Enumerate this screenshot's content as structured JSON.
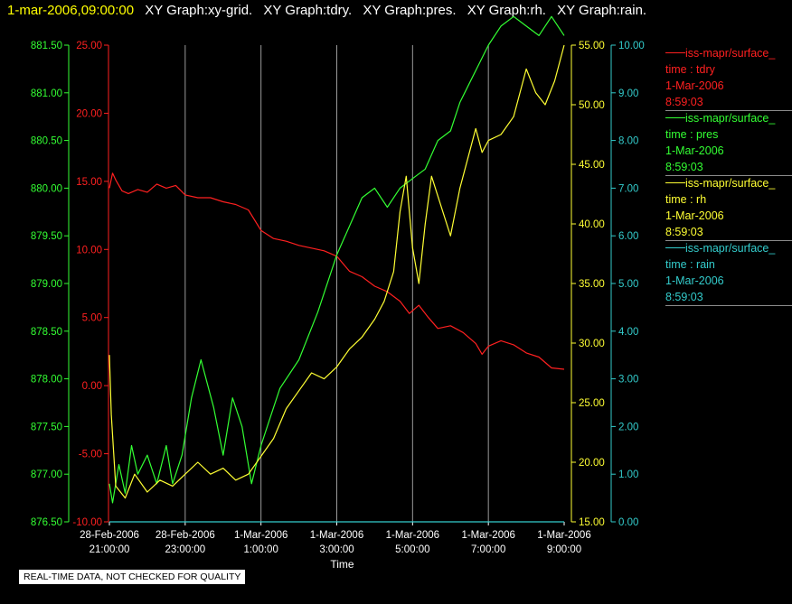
{
  "header": {
    "timestamp": "1-mar-2006,09:00:00",
    "titles": [
      "XY Graph:xy-grid.",
      "XY Graph:tdry.",
      "XY Graph:pres.",
      "XY Graph:rh.",
      "XY Graph:rain."
    ]
  },
  "legend": [
    {
      "name": "iss-mapr/surface_",
      "variable": "time : tdry",
      "date": "1-Mar-2006",
      "time": "8:59:03",
      "color": "#ff2020"
    },
    {
      "name": "iss-mapr/surface_",
      "variable": "time : pres",
      "date": "1-Mar-2006",
      "time": "8:59:03",
      "color": "#33ff33"
    },
    {
      "name": "iss-mapr/surface_",
      "variable": "time : rh",
      "date": "1-Mar-2006",
      "time": "8:59:03",
      "color": "#ffff33"
    },
    {
      "name": "iss-mapr/surface_",
      "variable": "time : rain",
      "date": "1-Mar-2006",
      "time": "8:59:03",
      "color": "#33cccc"
    }
  ],
  "footer": "REAL-TIME DATA, NOT CHECKED FOR QUALITY",
  "chart_data": {
    "type": "line",
    "xlabel": "Time",
    "x_range": [
      "2006-02-28 21:00",
      "2006-03-01 09:00"
    ],
    "x_ticks": [
      {
        "line1": "28-Feb-2006",
        "line2": "21:00:00",
        "at": "2006-02-28 21:00"
      },
      {
        "line1": "28-Feb-2006",
        "line2": "23:00:00",
        "at": "2006-02-28 23:00"
      },
      {
        "line1": "1-Mar-2006",
        "line2": "1:00:00",
        "at": "2006-03-01 01:00"
      },
      {
        "line1": "1-Mar-2006",
        "line2": "3:00:00",
        "at": "2006-03-01 03:00"
      },
      {
        "line1": "1-Mar-2006",
        "line2": "5:00:00",
        "at": "2006-03-01 05:00"
      },
      {
        "line1": "1-Mar-2006",
        "line2": "7:00:00",
        "at": "2006-03-01 07:00"
      },
      {
        "line1": "1-Mar-2006",
        "line2": "9:00:00",
        "at": "2006-03-01 09:00"
      }
    ],
    "grid": "vertical",
    "axes": {
      "tdry": {
        "range": [
          -10,
          25
        ],
        "ticks": [
          "-10.00",
          "-5.00",
          "0.00",
          "5.00",
          "10.00",
          "15.00",
          "20.00",
          "25.00"
        ],
        "color": "#ff2020"
      },
      "pres": {
        "range": [
          876.5,
          881.5
        ],
        "ticks": [
          "876.50",
          "877.00",
          "877.50",
          "878.00",
          "878.50",
          "879.00",
          "879.50",
          "880.00",
          "880.50",
          "881.00",
          "881.50"
        ],
        "color": "#33ff33"
      },
      "rh": {
        "range": [
          15,
          55
        ],
        "ticks": [
          "15.00",
          "20.00",
          "25.00",
          "30.00",
          "35.00",
          "40.00",
          "45.00",
          "50.00",
          "55.00"
        ],
        "color": "#ffff33"
      },
      "rain": {
        "range": [
          0,
          10
        ],
        "ticks": [
          "0.00",
          "1.00",
          "2.00",
          "3.00",
          "4.00",
          "5.00",
          "6.00",
          "7.00",
          "8.00",
          "9.00",
          "10.00"
        ],
        "color": "#33cccc"
      }
    },
    "series": [
      {
        "axis": "tdry",
        "color": "#ff2020",
        "x": [
          "2006-02-28 21:00",
          "2006-02-28 21:05",
          "2006-02-28 21:10",
          "2006-02-28 21:20",
          "2006-02-28 21:30",
          "2006-02-28 21:45",
          "2006-02-28 22:00",
          "2006-02-28 22:15",
          "2006-02-28 22:30",
          "2006-02-28 22:45",
          "2006-02-28 23:00",
          "2006-02-28 23:20",
          "2006-02-28 23:40",
          "2006-03-01 00:00",
          "2006-03-01 00:20",
          "2006-03-01 00:40",
          "2006-03-01 01:00",
          "2006-03-01 01:20",
          "2006-03-01 01:40",
          "2006-03-01 02:00",
          "2006-03-01 02:20",
          "2006-03-01 02:40",
          "2006-03-01 03:00",
          "2006-03-01 03:20",
          "2006-03-01 03:40",
          "2006-03-01 04:00",
          "2006-03-01 04:20",
          "2006-03-01 04:40",
          "2006-03-01 04:55",
          "2006-03-01 05:10",
          "2006-03-01 05:25",
          "2006-03-01 05:40",
          "2006-03-01 06:00",
          "2006-03-01 06:20",
          "2006-03-01 06:40",
          "2006-03-01 06:50",
          "2006-03-01 07:00",
          "2006-03-01 07:20",
          "2006-03-01 07:40",
          "2006-03-01 08:00",
          "2006-03-01 08:20",
          "2006-03-01 08:40",
          "2006-03-01 09:00"
        ],
        "values": [
          14.5,
          15.6,
          15.1,
          14.3,
          14.1,
          14.4,
          14.2,
          14.8,
          14.5,
          14.7,
          14.0,
          13.8,
          13.8,
          13.5,
          13.3,
          12.9,
          11.4,
          10.8,
          10.6,
          10.3,
          10.1,
          9.9,
          9.5,
          8.4,
          8.0,
          7.3,
          6.9,
          6.2,
          5.3,
          5.9,
          5.0,
          4.2,
          4.4,
          3.9,
          3.1,
          2.3,
          2.9,
          3.3,
          3.0,
          2.4,
          2.1,
          1.3,
          1.2
        ]
      },
      {
        "axis": "pres",
        "color": "#33ff33",
        "x": [
          "2006-02-28 21:00",
          "2006-02-28 21:05",
          "2006-02-28 21:15",
          "2006-02-28 21:25",
          "2006-02-28 21:35",
          "2006-02-28 21:45",
          "2006-02-28 22:00",
          "2006-02-28 22:15",
          "2006-02-28 22:30",
          "2006-02-28 22:40",
          "2006-02-28 22:55",
          "2006-02-28 23:10",
          "2006-02-28 23:25",
          "2006-02-28 23:45",
          "2006-03-01 00:00",
          "2006-03-01 00:15",
          "2006-03-01 00:30",
          "2006-03-01 00:45",
          "2006-03-01 01:00",
          "2006-03-01 01:15",
          "2006-03-01 01:30",
          "2006-03-01 02:00",
          "2006-03-01 02:30",
          "2006-03-01 03:00",
          "2006-03-01 03:20",
          "2006-03-01 03:40",
          "2006-03-01 04:00",
          "2006-03-01 04:20",
          "2006-03-01 04:40",
          "2006-03-01 05:00",
          "2006-03-01 05:20",
          "2006-03-01 05:40",
          "2006-03-01 06:00",
          "2006-03-01 06:15",
          "2006-03-01 06:30",
          "2006-03-01 06:45",
          "2006-03-01 07:00",
          "2006-03-01 07:20",
          "2006-03-01 07:40",
          "2006-03-01 08:00",
          "2006-03-01 08:20",
          "2006-03-01 08:40",
          "2006-03-01 09:00"
        ],
        "values": [
          876.9,
          876.7,
          877.1,
          876.8,
          877.3,
          877.0,
          877.2,
          876.9,
          877.3,
          876.9,
          877.2,
          877.8,
          878.2,
          877.7,
          877.2,
          877.8,
          877.5,
          876.9,
          877.3,
          877.6,
          877.9,
          878.2,
          878.7,
          879.3,
          879.6,
          879.9,
          880.0,
          879.8,
          880.0,
          880.1,
          880.2,
          880.5,
          880.6,
          880.9,
          881.1,
          881.3,
          881.5,
          881.7,
          881.8,
          881.7,
          881.6,
          881.8,
          881.6
        ]
      },
      {
        "axis": "rh",
        "color": "#ffff33",
        "x": [
          "2006-02-28 21:00",
          "2006-02-28 21:03",
          "2006-02-28 21:10",
          "2006-02-28 21:25",
          "2006-02-28 21:40",
          "2006-02-28 22:00",
          "2006-02-28 22:20",
          "2006-02-28 22:40",
          "2006-02-28 23:00",
          "2006-02-28 23:20",
          "2006-02-28 23:40",
          "2006-03-01 00:00",
          "2006-03-01 00:20",
          "2006-03-01 00:40",
          "2006-03-01 01:00",
          "2006-03-01 01:20",
          "2006-03-01 01:40",
          "2006-03-01 02:00",
          "2006-03-01 02:20",
          "2006-03-01 02:40",
          "2006-03-01 03:00",
          "2006-03-01 03:20",
          "2006-03-01 03:40",
          "2006-03-01 04:00",
          "2006-03-01 04:15",
          "2006-03-01 04:30",
          "2006-03-01 04:40",
          "2006-03-01 04:50",
          "2006-03-01 05:00",
          "2006-03-01 05:10",
          "2006-03-01 05:20",
          "2006-03-01 05:30",
          "2006-03-01 05:45",
          "2006-03-01 06:00",
          "2006-03-01 06:15",
          "2006-03-01 06:30",
          "2006-03-01 06:40",
          "2006-03-01 06:50",
          "2006-03-01 07:00",
          "2006-03-01 07:20",
          "2006-03-01 07:40",
          "2006-03-01 08:00",
          "2006-03-01 08:15",
          "2006-03-01 08:30",
          "2006-03-01 08:45",
          "2006-03-01 09:00"
        ],
        "values": [
          29.0,
          24.0,
          18.0,
          17.0,
          19.0,
          17.5,
          18.5,
          18.0,
          19.0,
          20.0,
          19.0,
          19.5,
          18.5,
          19.0,
          20.5,
          22.0,
          24.5,
          26.0,
          27.5,
          27.0,
          28.0,
          29.5,
          30.5,
          32.0,
          33.5,
          36.0,
          41.0,
          44.0,
          38.0,
          35.0,
          40.0,
          44.0,
          41.5,
          39.0,
          43.0,
          46.0,
          48.0,
          46.0,
          47.0,
          47.5,
          49.0,
          53.0,
          51.0,
          50.0,
          52.0,
          55.0
        ]
      },
      {
        "axis": "rain",
        "color": "#33cccc",
        "x": [
          "2006-02-28 21:00",
          "2006-03-01 09:00"
        ],
        "values": [
          0,
          0
        ]
      }
    ]
  }
}
